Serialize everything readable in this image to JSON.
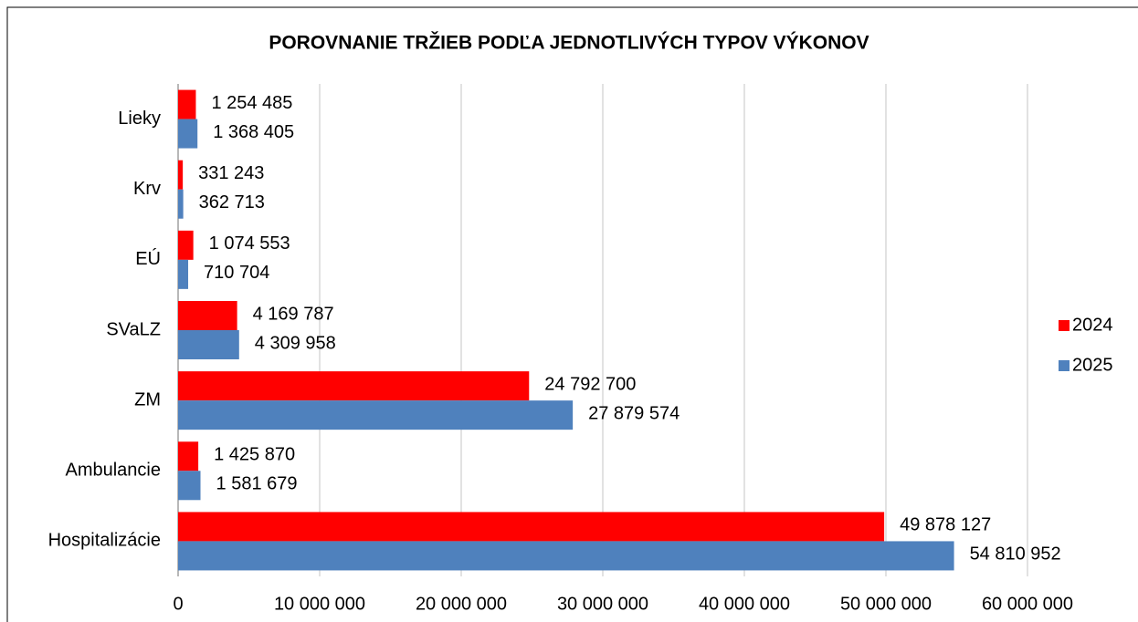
{
  "chart_data": {
    "type": "hbar",
    "title": "POROVNANIE TRŽIEB PODĽA JEDNOTLIVÝCH TYPOV VÝKONOV",
    "categories": [
      "Lieky",
      "Krv",
      "EÚ",
      "SVaLZ",
      "ZM",
      "Ambulancie",
      "Hospitalizácie"
    ],
    "series": [
      {
        "name": "2024",
        "color": "#ff0000",
        "values": [
          1254485,
          331243,
          1074553,
          4169787,
          24792700,
          1425870,
          49878127
        ],
        "value_labels": [
          "1 254 485",
          "331 243",
          "1 074 553",
          "4 169 787",
          "24 792 700",
          "1 425 870",
          "49 878 127"
        ]
      },
      {
        "name": "2025",
        "color": "#4f81bd",
        "values": [
          1368405,
          362713,
          710704,
          4309958,
          27879574,
          1581679,
          54810952
        ],
        "value_labels": [
          "1 368 405",
          "362 713",
          "710 704",
          "4 309 958",
          "27 879 574",
          "1 581 679",
          "54 810 952"
        ]
      }
    ],
    "xlim": [
      0,
      60000000
    ],
    "xticks": [
      0,
      {
        "value": 10000000,
        "label": "10 000 000"
      },
      {
        "value": 20000000,
        "label": "20 000 000"
      },
      {
        "value": 30000000,
        "label": "30 000 000"
      },
      {
        "value": 40000000,
        "label": "40 000 000"
      },
      {
        "value": 50000000,
        "label": "50 000 000"
      },
      {
        "value": 60000000,
        "label": "60 000 000"
      }
    ],
    "grid": true,
    "legend": "right"
  }
}
